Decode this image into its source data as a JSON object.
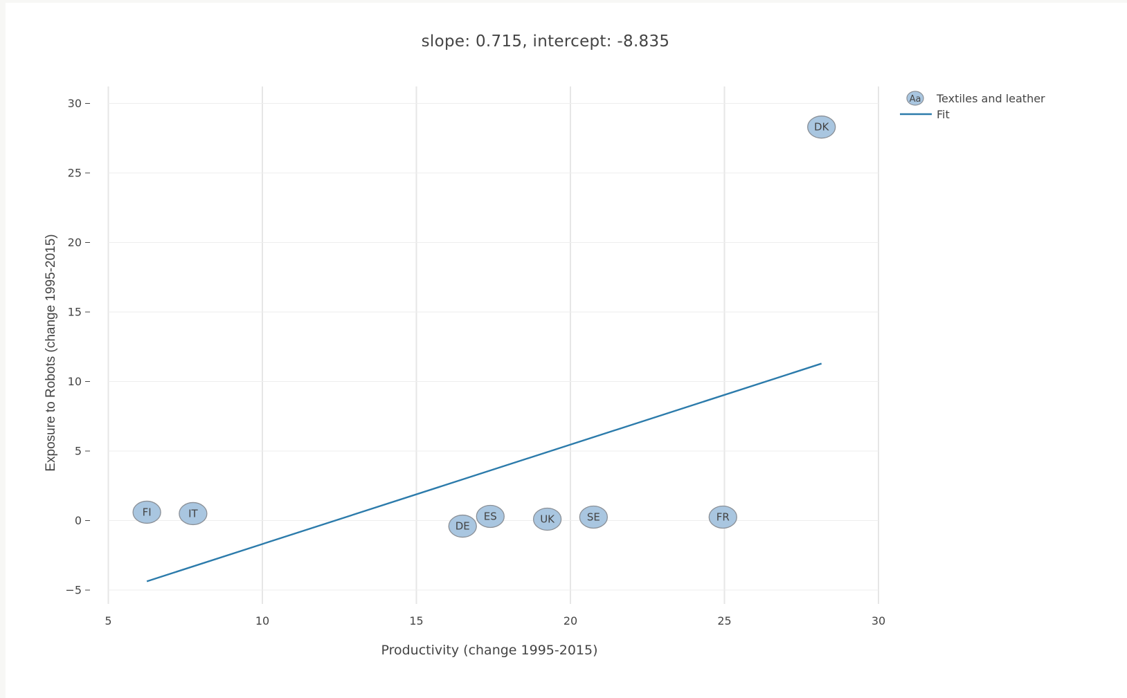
{
  "chart_data": {
    "type": "scatter",
    "title": "slope: 0.715, intercept: -8.835",
    "xlabel": "Productivity (change 1995-2015)",
    "ylabel": "Exposure to Robots (change 1995-2015)",
    "xlim": [
      5,
      30
    ],
    "ylim": [
      -6,
      31.2
    ],
    "xticks": [
      "5",
      "10",
      "15",
      "20",
      "25",
      "30"
    ],
    "yticks": [
      "−5",
      "0",
      "5",
      "10",
      "15",
      "20",
      "25",
      "30"
    ],
    "grid": true,
    "legend": "top-right",
    "colors": {
      "marker_fill": "#a9c6e0",
      "marker_stroke": "#8a8f96",
      "fit_line": "#2c7bab",
      "grid": "#e6e6e6"
    },
    "series": [
      {
        "name": "Textiles and leather",
        "marker_symbol": "Aa",
        "points": [
          {
            "label": "FI",
            "x": 6.25,
            "y": 0.6
          },
          {
            "label": "IT",
            "x": 7.75,
            "y": 0.5
          },
          {
            "label": "DE",
            "x": 16.5,
            "y": -0.4
          },
          {
            "label": "ES",
            "x": 17.4,
            "y": 0.3
          },
          {
            "label": "UK",
            "x": 19.25,
            "y": 0.1
          },
          {
            "label": "SE",
            "x": 20.75,
            "y": 0.25
          },
          {
            "label": "FR",
            "x": 24.95,
            "y": 0.25
          },
          {
            "label": "DK",
            "x": 28.15,
            "y": 28.3
          }
        ]
      },
      {
        "name": "Fit",
        "line": {
          "x": [
            6.25,
            28.15
          ],
          "y": [
            -4.37,
            11.29
          ]
        }
      }
    ]
  }
}
